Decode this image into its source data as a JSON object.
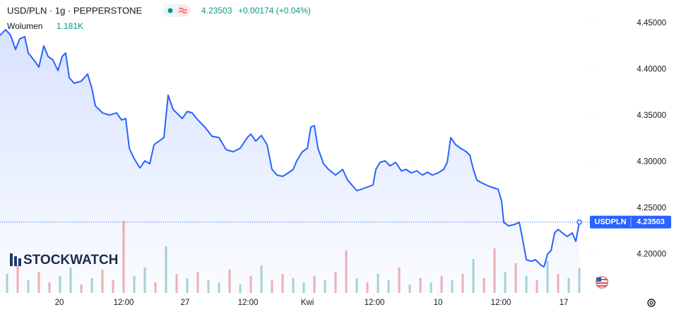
{
  "chart_data": {
    "type": "line",
    "title": "USD/PLN · 1g · PEPPERSTONE",
    "price": "4.23503",
    "change": "+0.00174 (+0.04%)",
    "watermark": "STOCKWATCH",
    "symbol_tag": "USDPLN",
    "xlim": [
      0,
      83
    ],
    "xticks": [
      {
        "value": 8.4,
        "label": "20"
      },
      {
        "value": 17.5,
        "label": "12:00"
      },
      {
        "value": 26.2,
        "label": "27"
      },
      {
        "value": 35.1,
        "label": "12:00"
      },
      {
        "value": 43.5,
        "label": "Kwi"
      },
      {
        "value": 53,
        "label": "12:00"
      },
      {
        "value": 62,
        "label": "10"
      },
      {
        "value": 70.9,
        "label": "12:00"
      },
      {
        "value": 79.8,
        "label": "17"
      }
    ],
    "ylim": [
      4.1584,
      4.4752
    ],
    "yticks": [
      {
        "value": 4.2,
        "label": "4.20000"
      },
      {
        "value": 4.25,
        "label": "4.25000"
      },
      {
        "value": 4.3,
        "label": "4.30000"
      },
      {
        "value": 4.35,
        "label": "4.35000"
      },
      {
        "value": 4.4,
        "label": "4.40000"
      },
      {
        "value": 4.45,
        "label": "4.45000"
      }
    ],
    "y2lim": [
      0,
      13.8
    ],
    "series": [
      {
        "name": "USDPLN",
        "type": "line",
        "color": "#2962ff",
        "x": [
          0,
          0.8,
          1.5,
          2.2,
          2.8,
          3.5,
          4,
          4.8,
          5.5,
          6.2,
          6.8,
          7.5,
          8.2,
          8.8,
          9.3,
          9.8,
          10.5,
          11.5,
          12.4,
          13,
          13.5,
          14.5,
          15.5,
          16.5,
          17.2,
          17.8,
          18.3,
          19,
          19.8,
          20.5,
          21.2,
          21.8,
          22.5,
          23.2,
          23.8,
          24.5,
          25.2,
          25.8,
          26.5,
          27.2,
          28,
          29,
          30,
          31,
          32,
          33,
          34,
          35,
          35.5,
          36.2,
          37,
          37.8,
          38.5,
          39.2,
          40,
          40.8,
          41.5,
          42,
          42.8,
          43.5,
          44,
          44.5,
          45,
          45.8,
          46.5,
          47.5,
          48.5,
          49.2,
          49.8,
          50.5,
          51.2,
          52,
          52.8,
          53.2,
          53.8,
          54.5,
          55.2,
          56,
          56.8,
          57.5,
          58.2,
          59,
          59.8,
          60.5,
          61.2,
          62,
          62.8,
          63.3,
          63.8,
          64.5,
          65.2,
          66,
          66.5,
          67,
          67.5,
          68,
          68.8,
          69.5,
          70.5,
          71,
          71.3,
          72,
          72.8,
          73.5,
          74,
          74.5,
          75.2,
          75.8,
          76.5,
          77,
          77.5,
          78,
          78.5,
          79,
          79.6,
          80.3,
          81,
          81.5,
          82
        ],
        "values": [
          4.437,
          4.4431,
          4.437,
          4.4218,
          4.4332,
          4.4355,
          4.4179,
          4.4103,
          4.4027,
          4.4256,
          4.4141,
          4.4103,
          4.3989,
          4.4141,
          4.4179,
          4.3912,
          4.3851,
          4.3874,
          4.3951,
          4.3798,
          4.3607,
          4.3531,
          4.3508,
          4.3531,
          4.3455,
          4.347,
          4.3149,
          4.3035,
          4.2936,
          4.3012,
          4.2981,
          4.3187,
          4.3226,
          4.3264,
          4.3722,
          4.3569,
          4.3516,
          4.347,
          4.3546,
          4.3531,
          4.3455,
          4.3378,
          4.3279,
          4.3264,
          4.3134,
          4.3111,
          4.3149,
          4.3264,
          4.3302,
          4.3226,
          4.3287,
          4.3187,
          4.292,
          4.2859,
          4.2844,
          4.2882,
          4.292,
          4.3012,
          4.3111,
          4.3149,
          4.3378,
          4.3393,
          4.3149,
          4.2981,
          4.292,
          4.2859,
          4.292,
          4.2805,
          4.2752,
          4.2691,
          4.2706,
          4.2729,
          4.2752,
          4.292,
          4.2996,
          4.3012,
          4.2958,
          4.2996,
          4.2905,
          4.292,
          4.2882,
          4.2905,
          4.2859,
          4.2889,
          4.2859,
          4.2882,
          4.292,
          4.2996,
          4.3264,
          4.3187,
          4.3149,
          4.3111,
          4.3073,
          4.292,
          4.2805,
          4.2782,
          4.2752,
          4.2729,
          4.2706,
          4.2576,
          4.2347,
          4.2309,
          4.2324,
          4.2347,
          4.2156,
          4.1943,
          4.1927,
          4.1943,
          4.1889,
          4.1866,
          4.2004,
          4.2042,
          4.2233,
          4.2271,
          4.2233,
          4.2195,
          4.2233,
          4.2141,
          4.23503
        ]
      },
      {
        "name": "Wolumen",
        "type": "bar",
        "axis": "y2",
        "color": "#089981",
        "x": [
          1,
          2.5,
          4,
          5.5,
          7,
          8.5,
          10,
          11.5,
          13,
          14.5,
          16,
          17.5,
          19,
          20.5,
          22,
          23.5,
          25,
          26.5,
          28,
          29.5,
          31,
          32.5,
          34,
          35.5,
          37,
          38.5,
          40,
          41.5,
          43,
          44.5,
          46,
          47.5,
          49,
          50.5,
          52,
          53.5,
          55,
          56.5,
          58,
          59.5,
          61,
          62.5,
          64,
          65.5,
          67,
          68.5,
          70,
          71.5,
          73,
          74.5,
          76,
          77.5,
          79,
          80.5,
          82
        ],
        "values": [
          0.9,
          1.3,
          0.6,
          1.0,
          0.5,
          0.8,
          1.2,
          0.4,
          0.7,
          1.1,
          0.6,
          3.4,
          0.8,
          1.2,
          0.5,
          2.2,
          0.9,
          0.7,
          1.0,
          0.6,
          0.5,
          1.1,
          0.4,
          0.8,
          1.3,
          0.6,
          0.9,
          0.7,
          0.5,
          0.8,
          0.6,
          1.0,
          2.0,
          0.7,
          0.5,
          0.9,
          0.6,
          1.2,
          0.4,
          0.7,
          0.5,
          0.8,
          0.6,
          0.9,
          1.6,
          0.7,
          2.1,
          1.0,
          1.4,
          0.8,
          0.6,
          1.5,
          0.9,
          0.7,
          1.181
        ],
        "value_labels": [
          null,
          null,
          null,
          null,
          null,
          null,
          null,
          null,
          null,
          null,
          null,
          null,
          null,
          null,
          null,
          null,
          null,
          null,
          null,
          null,
          null,
          null,
          null,
          null,
          null,
          null,
          null,
          null,
          null,
          null,
          null,
          null,
          null,
          null,
          null,
          null,
          null,
          null,
          null,
          null,
          null,
          null,
          null,
          null,
          null,
          null,
          null,
          null,
          null,
          null,
          null,
          null,
          null,
          null,
          "1.181K"
        ],
        "colors": [
          "#a5d6cf",
          "#f2b1b1",
          "#a5d6cf",
          "#f2b1b1",
          "#f2b1b1",
          "#a5d6cf",
          "#a5d6cf",
          "#f2b1b1",
          "#a5d6cf",
          "#f2b1b1",
          "#f2b1b1",
          "#f2b1b1",
          "#a5d6cf",
          "#a5d6cf",
          "#f2b1b1",
          "#a5d6cf",
          "#f2b1b1",
          "#a5d6cf",
          "#f2b1b1",
          "#a5d6cf",
          "#a5d6cf",
          "#f2b1b1",
          "#a5d6cf",
          "#f2b1b1",
          "#a5d6cf",
          "#f2b1b1",
          "#f2b1b1",
          "#a5d6cf",
          "#a5d6cf",
          "#f2b1b1",
          "#a5d6cf",
          "#f2b1b1",
          "#f2b1b1",
          "#a5d6cf",
          "#f2b1b1",
          "#a5d6cf",
          "#a5d6cf",
          "#f2b1b1",
          "#a5d6cf",
          "#f2b1b1",
          "#a5d6cf",
          "#f2b1b1",
          "#a5d6cf",
          "#f2b1b1",
          "#a5d6cf",
          "#f2b1b1",
          "#f2b1b1",
          "#a5d6cf",
          "#f2b1b1",
          "#a5d6cf",
          "#f2b1b1",
          "#a5d6cf",
          "#f2b1b1",
          "#a5d6cf",
          "#a5d6cf"
        ]
      }
    ]
  }
}
